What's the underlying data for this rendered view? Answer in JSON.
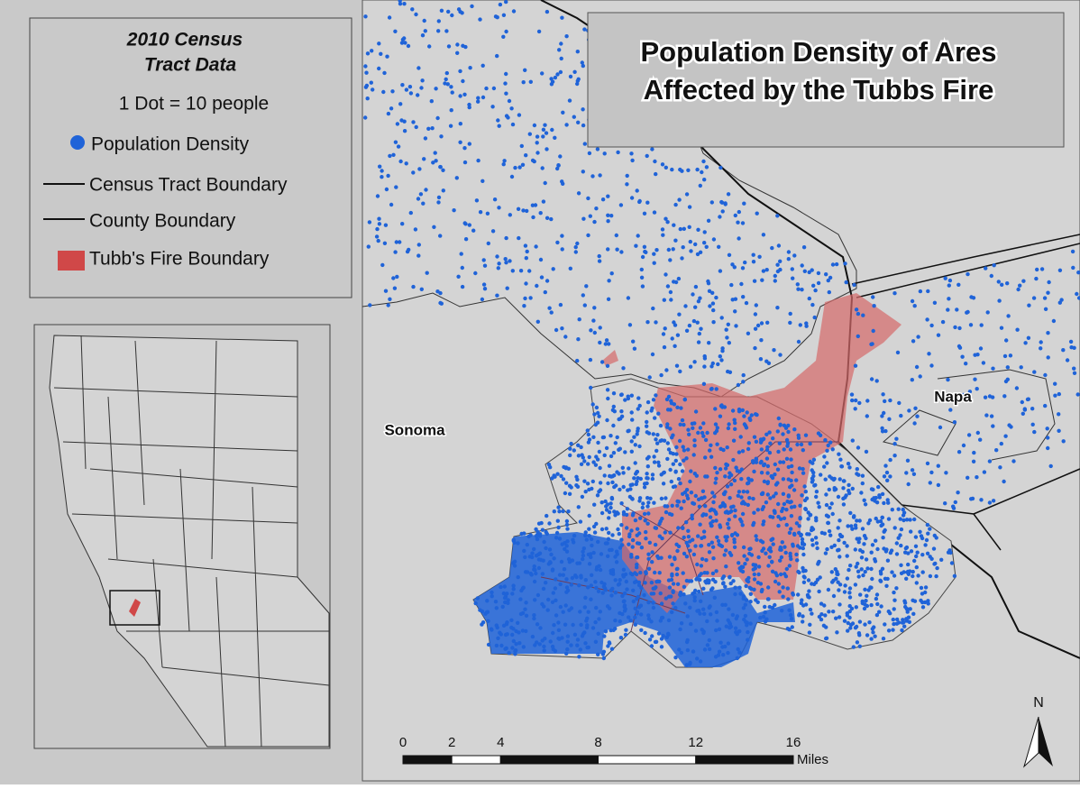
{
  "legend": {
    "title": [
      "2010 Census",
      "Tract Data"
    ],
    "dot_note": "1 Dot = 10 people",
    "items": [
      "Population Density",
      "Census Tract Boundary",
      "County Boundary",
      "Tubb's Fire Boundary"
    ]
  },
  "title": [
    "Population Density of Ares",
    "Affected by the Tubbs Fire"
  ],
  "labels": {
    "sonoma": "Sonoma",
    "napa": "Napa"
  },
  "scale_bar": {
    "ticks": [
      0,
      2,
      4,
      8,
      12,
      16
    ],
    "unit": "Miles"
  },
  "north_arrow": "N"
}
